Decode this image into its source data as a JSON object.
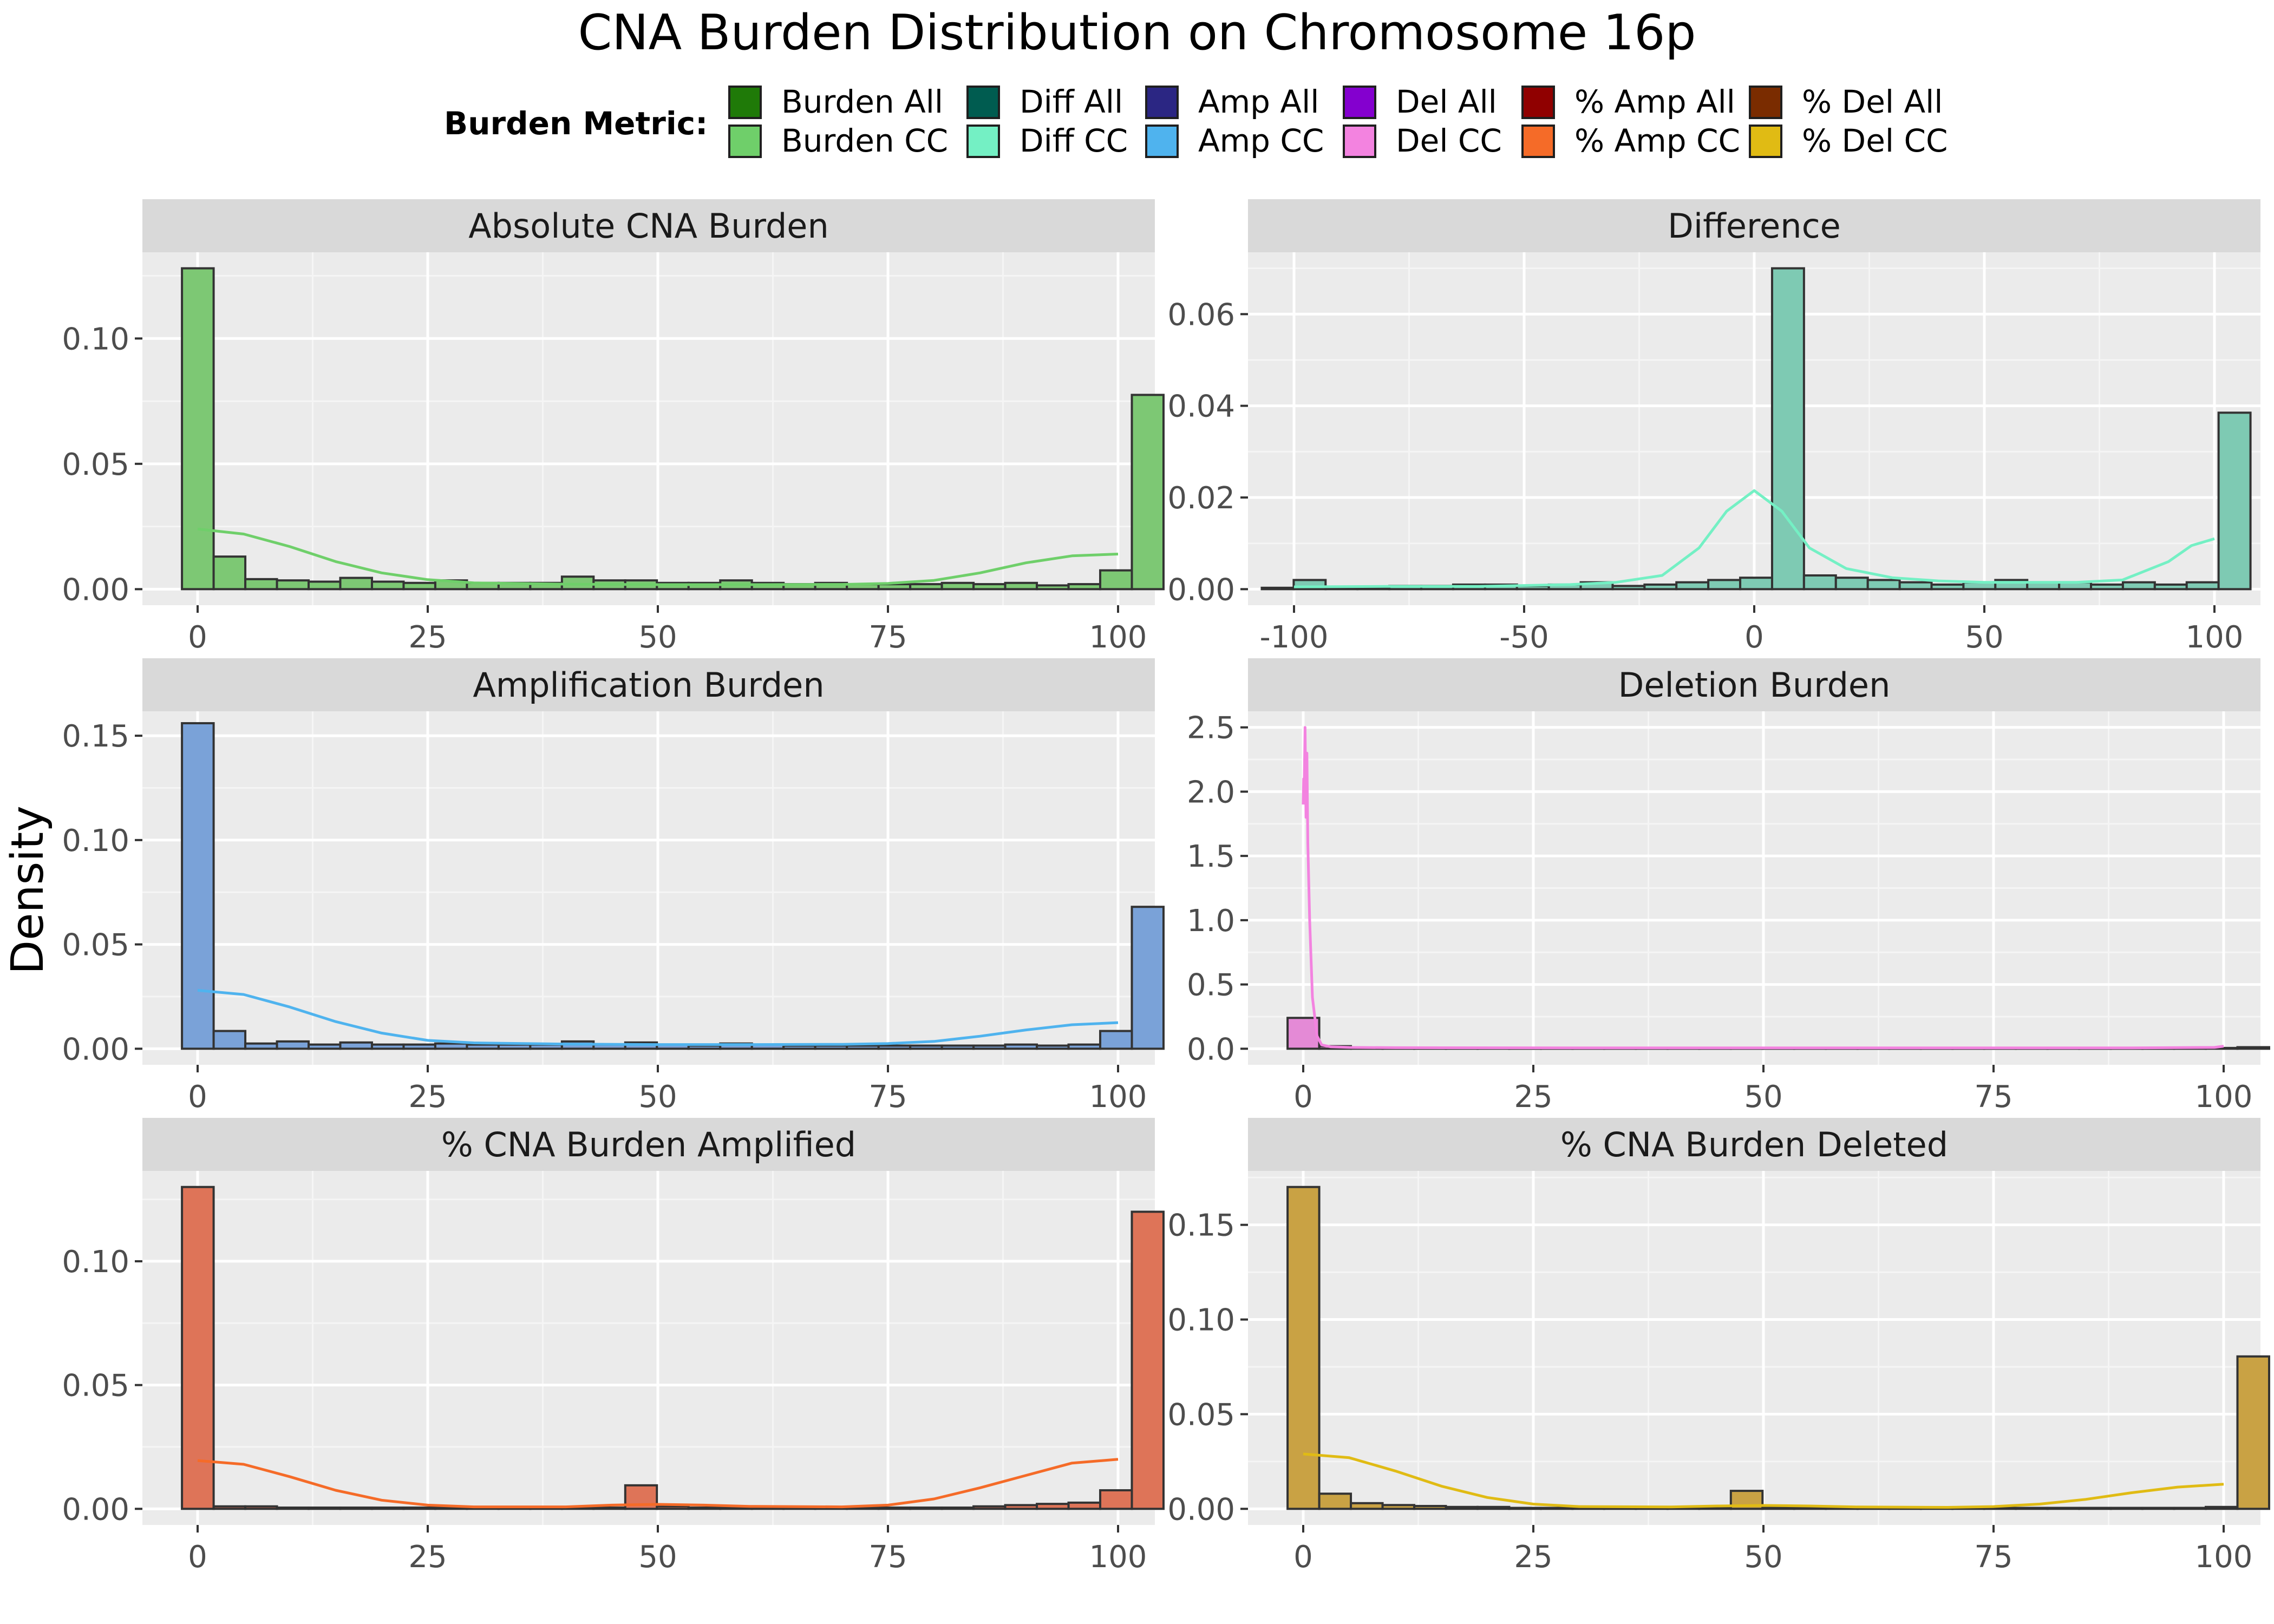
{
  "chart_data": {
    "type": "bar",
    "title": "CNA Burden Distribution on Chromosome 16p",
    "ylabel": "Density",
    "legend": {
      "title": "Burden Metric:",
      "placement": "top",
      "entries": [
        {
          "name": "Burden All",
          "color": "#1f7a08"
        },
        {
          "name": "Burden CC",
          "color": "#6fcf6a"
        },
        {
          "name": "Diff All",
          "color": "#005c50"
        },
        {
          "name": "Diff CC",
          "color": "#74f0c4"
        },
        {
          "name": "Amp All",
          "color": "#2b2683"
        },
        {
          "name": "Amp CC",
          "color": "#4fb3ee"
        },
        {
          "name": "Del All",
          "color": "#8400cf"
        },
        {
          "name": "Del CC",
          "color": "#f383e0"
        },
        {
          "name": "% Amp All",
          "color": "#900000"
        },
        {
          "name": "% Amp CC",
          "color": "#f56b28"
        },
        {
          "name": "% Del All",
          "color": "#7a2c00"
        },
        {
          "name": "% Del CC",
          "color": "#e0bb14"
        }
      ]
    },
    "grid": true,
    "panels": [
      {
        "title": "Absolute CNA Burden",
        "xlim": [
          -6,
          104
        ],
        "ylim": [
          -0.0064,
          0.1344
        ],
        "xticks": [
          0,
          25,
          50,
          75,
          100
        ],
        "xtick_labels": [
          "0",
          "25",
          "50",
          "75",
          "100"
        ],
        "yticks": [
          0,
          0.05,
          0.1
        ],
        "ytick_labels": [
          "0.00",
          "0.05",
          "0.10"
        ],
        "bar_start": -1.7,
        "bin_width": 3.44,
        "bar_color": "#7dc874",
        "curve_color": "#6fcf6a",
        "values": [
          0.128,
          0.013,
          0.004,
          0.0035,
          0.003,
          0.0045,
          0.003,
          0.0025,
          0.0035,
          0.0025,
          0.0025,
          0.0025,
          0.005,
          0.0035,
          0.0035,
          0.0025,
          0.0025,
          0.0035,
          0.0025,
          0.002,
          0.0025,
          0.002,
          0.002,
          0.002,
          0.0025,
          0.002,
          0.0025,
          0.0015,
          0.002,
          0.0075,
          0.0775
        ],
        "curve_x": [
          0,
          5,
          10,
          15,
          20,
          25,
          30,
          40,
          50,
          60,
          70,
          75,
          80,
          85,
          90,
          95,
          100
        ],
        "curve_y": [
          0.024,
          0.022,
          0.017,
          0.011,
          0.0065,
          0.0038,
          0.0025,
          0.002,
          0.0018,
          0.0018,
          0.0019,
          0.0023,
          0.0035,
          0.0065,
          0.0105,
          0.0133,
          0.014
        ]
      },
      {
        "title": "Difference",
        "xlim": [
          -110,
          110
        ],
        "ylim": [
          -0.0035,
          0.0735
        ],
        "xticks": [
          -100,
          -50,
          0,
          50,
          100
        ],
        "xtick_labels": [
          "-100",
          "-50",
          "0",
          "50",
          "100"
        ],
        "yticks": [
          0,
          0.02,
          0.04,
          0.06
        ],
        "ytick_labels": [
          "0.00",
          "0.02",
          "0.04",
          "0.06"
        ],
        "bar_start": -107.0,
        "bin_width": 6.93,
        "bar_color": "#7ecab3",
        "curve_color": "#74f0c4",
        "values": [
          0.0003,
          0.002,
          0.0003,
          0.0003,
          0.0007,
          0.0007,
          0.001,
          0.001,
          0.0007,
          0.001,
          0.0015,
          0.0007,
          0.001,
          0.0015,
          0.002,
          0.0025,
          0.07,
          0.003,
          0.0025,
          0.002,
          0.0015,
          0.001,
          0.0015,
          0.002,
          0.0015,
          0.0015,
          0.001,
          0.0015,
          0.001,
          0.0015,
          0.0385
        ],
        "curve_x": [
          -100,
          -80,
          -60,
          -40,
          -30,
          -20,
          -12,
          -6,
          0,
          6,
          12,
          20,
          30,
          40,
          50,
          60,
          70,
          80,
          90,
          95,
          100
        ],
        "curve_y": [
          0.0005,
          0.0006,
          0.0006,
          0.001,
          0.0015,
          0.003,
          0.009,
          0.017,
          0.0215,
          0.017,
          0.009,
          0.0045,
          0.0025,
          0.0018,
          0.0015,
          0.0015,
          0.0015,
          0.002,
          0.006,
          0.0095,
          0.011
        ]
      },
      {
        "title": "Amplification Burden",
        "xlim": [
          -6,
          104
        ],
        "ylim": [
          -0.0077,
          0.1617
        ],
        "xticks": [
          0,
          25,
          50,
          75,
          100
        ],
        "xtick_labels": [
          "0",
          "25",
          "50",
          "75",
          "100"
        ],
        "yticks": [
          0,
          0.05,
          0.1,
          0.15
        ],
        "ytick_labels": [
          "0.00",
          "0.05",
          "0.10",
          "0.15"
        ],
        "bar_start": -1.7,
        "bin_width": 3.44,
        "bar_color": "#7aa2d8",
        "curve_color": "#4fb3ee",
        "values": [
          0.156,
          0.0085,
          0.0025,
          0.0035,
          0.002,
          0.003,
          0.002,
          0.002,
          0.0025,
          0.002,
          0.002,
          0.002,
          0.0035,
          0.002,
          0.003,
          0.002,
          0.0015,
          0.0025,
          0.002,
          0.0015,
          0.0015,
          0.0015,
          0.0015,
          0.0015,
          0.0015,
          0.0015,
          0.002,
          0.0015,
          0.002,
          0.0085,
          0.068
        ],
        "curve_x": [
          0,
          5,
          10,
          15,
          20,
          25,
          30,
          40,
          50,
          60,
          70,
          75,
          80,
          85,
          90,
          95,
          100
        ],
        "curve_y": [
          0.028,
          0.026,
          0.02,
          0.013,
          0.0075,
          0.004,
          0.0028,
          0.0022,
          0.002,
          0.002,
          0.0021,
          0.0025,
          0.0035,
          0.006,
          0.009,
          0.0115,
          0.0125
        ]
      },
      {
        "title": "Deletion Burden",
        "xlim": [
          -6,
          104
        ],
        "ylim": [
          -0.125,
          2.625
        ],
        "xticks": [
          0,
          25,
          50,
          75,
          100
        ],
        "xtick_labels": [
          "0",
          "25",
          "50",
          "75",
          "100"
        ],
        "yticks": [
          0,
          0.5,
          1,
          1.5,
          2,
          2.5
        ],
        "ytick_labels": [
          "0.0",
          "0.5",
          "1.0",
          "1.5",
          "2.0",
          "2.5"
        ],
        "bar_start": -1.7,
        "bin_width": 3.44,
        "bar_color": "#e48ad6",
        "curve_color": "#f383e0",
        "values": [
          0.24,
          0.02,
          0.008,
          0.006,
          0.005,
          0.005,
          0.005,
          0.004,
          0.004,
          0.004,
          0.004,
          0.004,
          0.004,
          0.004,
          0.004,
          0.004,
          0.004,
          0.004,
          0.004,
          0.004,
          0.004,
          0.004,
          0.004,
          0.004,
          0.004,
          0.004,
          0.004,
          0.004,
          0.004,
          0.006,
          0.012
        ],
        "curve_x": [
          0,
          0.05,
          0.1,
          0.2,
          0.3,
          0.4,
          0.5,
          0.7,
          1.0,
          1.5,
          2,
          3,
          5,
          10,
          30,
          60,
          90,
          99,
          100
        ],
        "curve_y": [
          1.9,
          2.1,
          2.0,
          2.5,
          1.8,
          2.3,
          1.6,
          1.0,
          0.4,
          0.1,
          0.03,
          0.015,
          0.01,
          0.008,
          0.007,
          0.007,
          0.007,
          0.01,
          0.02
        ]
      },
      {
        "title": "% CNA Burden Amplified",
        "xlim": [
          -6,
          104
        ],
        "ylim": [
          -0.0065,
          0.1365
        ],
        "xticks": [
          0,
          25,
          50,
          75,
          100
        ],
        "xtick_labels": [
          "0",
          "25",
          "50",
          "75",
          "100"
        ],
        "yticks": [
          0,
          0.05,
          0.1
        ],
        "ytick_labels": [
          "0.00",
          "0.05",
          "0.10"
        ],
        "bar_start": -1.7,
        "bin_width": 3.44,
        "bar_color": "#de7458",
        "curve_color": "#f56b28",
        "values": [
          0.13,
          0.001,
          0.001,
          0.0005,
          0.0005,
          0.0005,
          0.0005,
          0.0005,
          0.0005,
          0.0005,
          0.0005,
          0.0005,
          0.0005,
          0.0005,
          0.0095,
          0.001,
          0.0005,
          0.0005,
          0.0005,
          0.0005,
          0.0005,
          0.0005,
          0.0005,
          0.0005,
          0.0005,
          0.001,
          0.0015,
          0.002,
          0.0025,
          0.0075,
          0.12
        ],
        "curve_x": [
          0,
          5,
          10,
          15,
          20,
          25,
          30,
          40,
          45,
          50,
          55,
          60,
          70,
          75,
          80,
          85,
          90,
          95,
          100
        ],
        "curve_y": [
          0.0195,
          0.018,
          0.013,
          0.0075,
          0.0035,
          0.0015,
          0.0008,
          0.0008,
          0.0015,
          0.0018,
          0.0015,
          0.001,
          0.0008,
          0.0015,
          0.004,
          0.0085,
          0.0135,
          0.0185,
          0.02
        ]
      },
      {
        "title": "% CNA Burden Deleted",
        "xlim": [
          -6,
          104
        ],
        "ylim": [
          -0.0085,
          0.1785
        ],
        "xticks": [
          0,
          25,
          50,
          75,
          100
        ],
        "xtick_labels": [
          "0",
          "25",
          "50",
          "75",
          "100"
        ],
        "yticks": [
          0,
          0.05,
          0.1,
          0.15
        ],
        "ytick_labels": [
          "0.00",
          "0.05",
          "0.10",
          "0.15"
        ],
        "bar_start": -1.7,
        "bin_width": 3.44,
        "bar_color": "#c9a244",
        "curve_color": "#e0bb14",
        "values": [
          0.17,
          0.008,
          0.003,
          0.002,
          0.0015,
          0.001,
          0.001,
          0.0005,
          0.0005,
          0.0005,
          0.0005,
          0.0005,
          0.0005,
          0.0005,
          0.0095,
          0.0005,
          0.0005,
          0.0005,
          0.0005,
          0.0005,
          0.0005,
          0.0005,
          0.0005,
          0.0005,
          0.0005,
          0.0005,
          0.0005,
          0.0005,
          0.0005,
          0.001,
          0.0805
        ],
        "curve_x": [
          0,
          5,
          10,
          15,
          20,
          25,
          30,
          40,
          45,
          50,
          55,
          60,
          70,
          75,
          80,
          85,
          90,
          95,
          100
        ],
        "curve_y": [
          0.029,
          0.027,
          0.02,
          0.012,
          0.006,
          0.0025,
          0.0012,
          0.001,
          0.0015,
          0.0018,
          0.0015,
          0.001,
          0.0008,
          0.0012,
          0.0025,
          0.005,
          0.0085,
          0.0115,
          0.013
        ]
      }
    ]
  }
}
